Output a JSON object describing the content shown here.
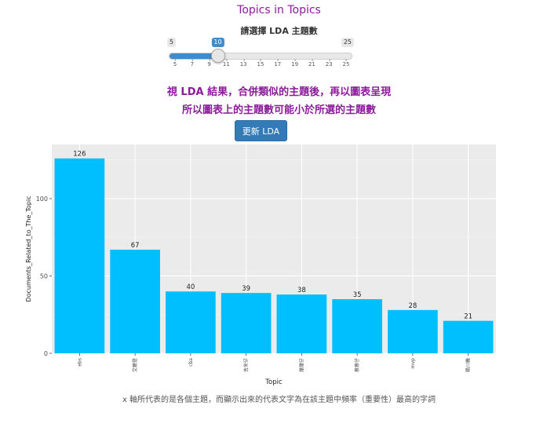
{
  "app": {
    "title": "Topics in Topics"
  },
  "slider": {
    "label": "請選擇 LDA 主題數",
    "min": 5,
    "max": 25,
    "value": 10,
    "min_label": "5",
    "max_label": "25",
    "value_label": "10",
    "ticks": [
      "5",
      "7",
      "9",
      "11",
      "13",
      "15",
      "17",
      "19",
      "21",
      "23",
      "25"
    ]
  },
  "notes": {
    "line1": "視 LDA 結果，合併類似的主題後，再以圖表呈現",
    "line2": "所以圖表上的主題數可能小於所選的主題數"
  },
  "update_button": {
    "label": "更新 LDA"
  },
  "colors": {
    "title": "#8b1b9a",
    "button": "#337ab7",
    "bar": "#00bfff",
    "panel": "#ebebeb"
  },
  "chart_data": {
    "type": "bar",
    "categories": [
      "ebs",
      "艾爾登",
      "cba",
      "吉米仔",
      "爆爆仔",
      "蔡蔡仔",
      "mvp",
      "賴川機"
    ],
    "values": [
      126,
      67,
      40,
      39,
      38,
      35,
      28,
      21
    ],
    "xlabel": "Topic",
    "ylabel": "Documents_Related_to_The_Topic",
    "ylim": [
      0,
      135
    ],
    "yticks": [
      0,
      50,
      100
    ],
    "grid": true,
    "legend": "none"
  },
  "caption": "x 軸所代表的是各個主題，而顯示出來的代表文字為在該主題中頻率（重要性）最高的字詞"
}
